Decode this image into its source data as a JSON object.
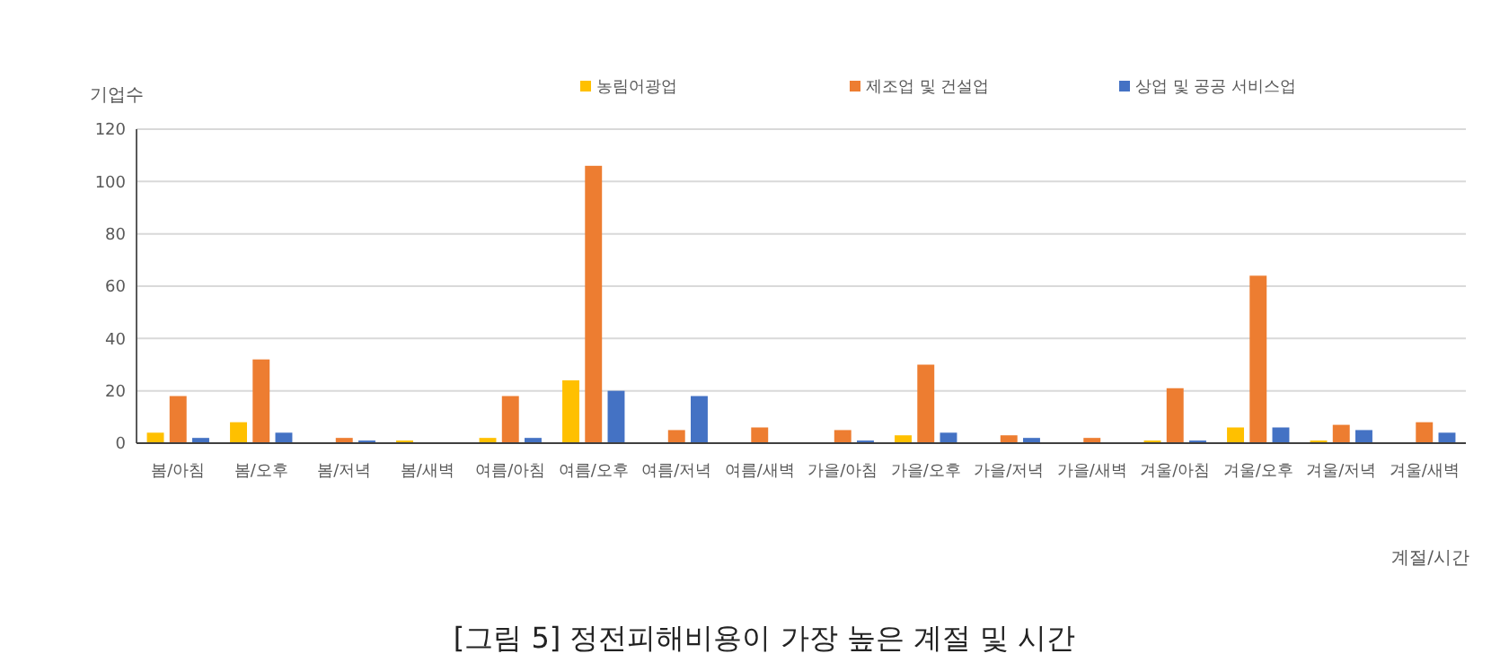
{
  "chart_data": {
    "type": "bar",
    "title": "[그림 5] 정전피해비용이 가장 높은 계절 및 시간",
    "ylabel": "기업수",
    "xlabel": "계절/시간",
    "categories": [
      "봄/아침",
      "봄/오후",
      "봄/저녁",
      "봄/새벽",
      "여름/아침",
      "여름/오후",
      "여름/저녁",
      "여름/새벽",
      "가을/아침",
      "가을/오후",
      "가을/저녁",
      "가을/새벽",
      "겨울/아침",
      "겨울/오후",
      "겨울/저녁",
      "겨울/새벽"
    ],
    "series": [
      {
        "name": "농림어광업",
        "color": "#ffc000",
        "values": [
          4,
          8,
          0,
          1,
          2,
          24,
          0,
          0,
          0,
          3,
          0,
          0,
          1,
          6,
          1,
          0
        ]
      },
      {
        "name": "제조업 및 건설업",
        "color": "#ed7d31",
        "values": [
          18,
          32,
          2,
          0,
          18,
          106,
          5,
          6,
          5,
          30,
          3,
          2,
          21,
          64,
          7,
          8
        ]
      },
      {
        "name": "상업 및 공공 서비스업",
        "color": "#4472c4",
        "values": [
          2,
          4,
          1,
          0,
          2,
          20,
          18,
          0,
          1,
          4,
          2,
          0,
          1,
          6,
          5,
          4
        ]
      }
    ],
    "ylim": [
      0,
      120
    ],
    "yticks": [
      0,
      20,
      40,
      60,
      80,
      100,
      120
    ],
    "grid": "y",
    "legend": "top"
  }
}
